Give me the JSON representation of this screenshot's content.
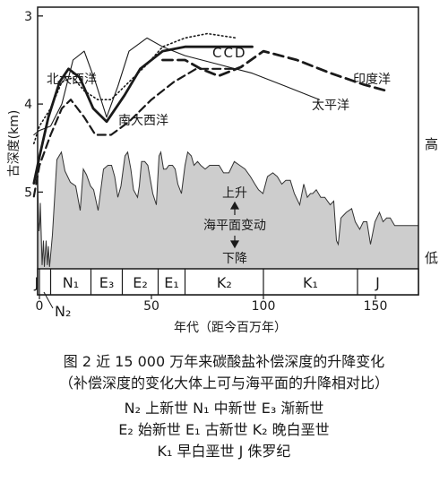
{
  "chart_data": {
    "type": "line",
    "xlabel": "年代（距今百万年）",
    "ylabel": "古深度(km)",
    "xlim": [
      -3,
      160
    ],
    "ylim": [
      5.8,
      2.9
    ],
    "x_ticks": [
      "0",
      "50",
      "100",
      "150"
    ],
    "y_ticks": [
      "3",
      "4",
      "5"
    ],
    "right_labels": {
      "high": "高",
      "low": "低"
    },
    "annotations": {
      "up": "上升",
      "middle": "海平面变动",
      "down": "下降"
    },
    "epochs": [
      {
        "label": "J",
        "from": -2.5,
        "to": 0
      },
      {
        "label": "N₂",
        "from": 0,
        "to": 5
      },
      {
        "label": "N₁",
        "from": 5,
        "to": 23
      },
      {
        "label": "E₃",
        "from": 23,
        "to": 37
      },
      {
        "label": "E₂",
        "from": 37,
        "to": 53
      },
      {
        "label": "E₁",
        "from": 53,
        "to": 65
      },
      {
        "label": "K₂",
        "from": 65,
        "to": 100
      },
      {
        "label": "K₁",
        "from": 100,
        "to": 142
      },
      {
        "label": "J",
        "from": 142,
        "to": 160
      }
    ],
    "series": [
      {
        "name": "北大西洋",
        "style": "solid-thick",
        "x": [
          -2.5,
          0,
          4,
          9,
          13,
          18,
          24,
          30,
          38,
          45,
          55,
          65,
          75,
          85,
          92,
          95
        ],
        "y": [
          4.9,
          4.6,
          4.15,
          3.75,
          3.6,
          3.7,
          4.05,
          4.2,
          3.9,
          3.6,
          3.4,
          3.35,
          3.35,
          3.35,
          3.35,
          3.35
        ]
      },
      {
        "name": "南大西洋",
        "style": "dashed",
        "x": [
          -2.5,
          0,
          5,
          10,
          14,
          20,
          25,
          32,
          40,
          50,
          60,
          70,
          80,
          88
        ],
        "y": [
          5.05,
          4.7,
          4.35,
          4.05,
          3.95,
          4.15,
          4.35,
          4.35,
          4.2,
          3.95,
          3.75,
          3.6,
          3.6,
          3.6
        ]
      },
      {
        "name": "太平洋",
        "style": "thin",
        "x": [
          -2.5,
          0,
          5,
          10,
          15,
          20,
          25,
          30,
          35,
          40,
          48,
          55,
          65,
          80,
          95,
          110,
          125
        ],
        "y": [
          4.35,
          4.3,
          4.25,
          4.0,
          3.5,
          3.4,
          3.75,
          4.15,
          3.8,
          3.4,
          3.25,
          3.35,
          3.45,
          3.55,
          3.65,
          3.8,
          3.95
        ]
      },
      {
        "name": "印度洋",
        "style": "dashed-thick",
        "x": [
          55,
          65,
          72,
          80,
          90,
          100,
          115,
          130,
          145,
          155
        ],
        "y": [
          3.5,
          3.5,
          3.6,
          3.68,
          3.58,
          3.4,
          3.5,
          3.65,
          3.78,
          3.85
        ]
      },
      {
        "name": "CCD",
        "style": "dotted",
        "x": [
          -2.5,
          0,
          5,
          10,
          15,
          20,
          26,
          32,
          40,
          48,
          55,
          65,
          75,
          88
        ],
        "y": [
          4.45,
          4.25,
          4.05,
          3.75,
          3.7,
          3.85,
          3.95,
          3.95,
          3.75,
          3.55,
          3.35,
          3.25,
          3.2,
          3.25
        ]
      }
    ],
    "sea_level": {
      "x": [
        -3,
        -2.5,
        -1.8,
        -1,
        -0.2,
        0.2,
        0.4,
        1.2,
        1.8,
        2.2,
        3,
        3.5,
        4,
        4.5,
        5.8,
        7.8,
        9.8,
        11.4,
        13.8,
        16.2,
        18.2,
        19.6,
        21,
        22.8,
        24.2,
        26.2,
        28.6,
        30.6,
        32.2,
        33.6,
        35,
        36.4,
        38.2,
        39.4,
        40.8,
        42,
        43.8,
        44.6,
        45.6,
        47,
        48.4,
        50.6,
        52.2,
        53.4,
        54.2,
        55.4,
        56.6,
        57.8,
        59.4,
        60.6,
        61.8,
        63.4,
        65,
        66.2,
        67.8,
        69,
        70.6,
        72,
        74,
        76,
        78.2,
        80.2,
        82.2,
        84.6,
        87,
        89.4,
        91.8,
        94.2,
        96.2,
        97.8,
        99.8,
        101.8,
        104.2,
        106.2,
        108.2,
        110,
        112,
        113.8,
        116.2,
        118,
        119.6,
        121,
        122,
        123.6,
        125.6,
        127.4,
        129.8,
        131.4,
        132.6,
        133.4,
        134.6,
        137,
        139.4,
        141,
        143,
        144.6,
        146.2,
        147.8,
        149.8,
        151.8,
        153.4,
        155,
        156.6,
        158.6
      ],
      "y": [
        0.15,
        0.3,
        0.7,
        0.45,
        0.2,
        0.25,
        0.35,
        0.02,
        0.15,
        0.01,
        0.15,
        0.02,
        0.12,
        0.01,
        0.18,
        0.58,
        0.62,
        0.52,
        0.46,
        0.44,
        0.31,
        0.53,
        0.5,
        0.44,
        0.42,
        0.31,
        0.53,
        0.55,
        0.55,
        0.49,
        0.38,
        0.44,
        0.6,
        0.62,
        0.53,
        0.42,
        0.38,
        0.44,
        0.57,
        0.57,
        0.55,
        0.4,
        0.34,
        0.6,
        0.62,
        0.53,
        0.53,
        0.55,
        0.55,
        0.53,
        0.45,
        0.4,
        0.55,
        0.62,
        0.6,
        0.55,
        0.57,
        0.55,
        0.53,
        0.55,
        0.55,
        0.55,
        0.51,
        0.51,
        0.57,
        0.55,
        0.53,
        0.49,
        0.45,
        0.42,
        0.4,
        0.49,
        0.51,
        0.49,
        0.45,
        0.47,
        0.47,
        0.4,
        0.34,
        0.45,
        0.38,
        0.4,
        0.4,
        0.42,
        0.38,
        0.38,
        0.34,
        0.36,
        0.15,
        0.13,
        0.27,
        0.3,
        0.32,
        0.25,
        0.21,
        0.25,
        0.25,
        0.13,
        0.25,
        0.3,
        0.25,
        0.27,
        0.27,
        0.23
      ]
    }
  },
  "caption": {
    "line1": "图 2   近 15 000 万年来碳酸盐补偿深度的升降变化",
    "line2": "（补偿深度的变化大体上可与海平面的升降相对比）",
    "legend_rows": [
      "N₂ 上新世    N₁ 中新世    E₃ 渐新世",
      "E₂ 始新世    E₁ 古新世    K₂ 晚白垩世",
      "K₁ 早白垩世    J 侏罗纪"
    ]
  }
}
